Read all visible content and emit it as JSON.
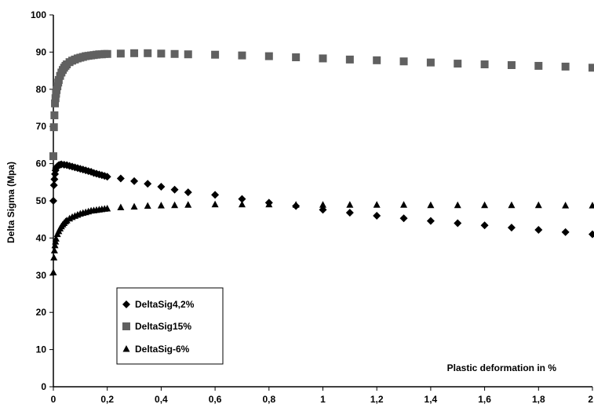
{
  "chart_data": {
    "type": "scatter",
    "title": "",
    "xlabel": "",
    "ylabel": "Delta Sigma (Mpa)",
    "annotation": "Plastic deformation in %",
    "xlim": [
      0,
      2
    ],
    "ylim": [
      0,
      100
    ],
    "x_ticks": [
      "0",
      "0,2",
      "0,4",
      "0,6",
      "0,8",
      "1",
      "1,2",
      "1,4",
      "1,6",
      "1,8",
      "2"
    ],
    "y_ticks": [
      "0",
      "10",
      "20",
      "30",
      "40",
      "50",
      "60",
      "70",
      "80",
      "90",
      "100"
    ],
    "grid": false,
    "legend_position": "bottom-left",
    "series": [
      {
        "name": "DeltaSig4,2%",
        "marker": "diamond",
        "color": "#000000",
        "x": [
          0.0,
          0.002,
          0.004,
          0.006,
          0.008,
          0.01,
          0.015,
          0.02,
          0.025,
          0.03,
          0.04,
          0.05,
          0.06,
          0.07,
          0.08,
          0.09,
          0.1,
          0.11,
          0.12,
          0.13,
          0.14,
          0.15,
          0.16,
          0.17,
          0.18,
          0.19,
          0.2,
          0.25,
          0.3,
          0.35,
          0.4,
          0.45,
          0.5,
          0.6,
          0.7,
          0.8,
          0.9,
          1.0,
          1.1,
          1.2,
          1.3,
          1.4,
          1.5,
          1.6,
          1.7,
          1.8,
          1.9,
          2.0
        ],
        "y": [
          50.0,
          54.2,
          55.8,
          57.2,
          58.2,
          58.8,
          59.3,
          59.6,
          59.7,
          59.8,
          59.7,
          59.6,
          59.4,
          59.2,
          59.0,
          58.8,
          58.6,
          58.4,
          58.2,
          58.0,
          57.8,
          57.5,
          57.3,
          57.1,
          56.9,
          56.7,
          56.5,
          56.0,
          55.3,
          54.6,
          53.8,
          53.0,
          52.3,
          51.6,
          50.5,
          49.5,
          48.6,
          47.6,
          46.8,
          46.0,
          45.3,
          44.6,
          44.0,
          43.4,
          42.8,
          42.2,
          41.6,
          41.0
        ]
      },
      {
        "name": "DeltaSig15%",
        "marker": "square",
        "color": "#606060",
        "x": [
          0.0,
          0.002,
          0.004,
          0.006,
          0.008,
          0.01,
          0.012,
          0.015,
          0.018,
          0.02,
          0.025,
          0.03,
          0.035,
          0.04,
          0.045,
          0.05,
          0.06,
          0.07,
          0.08,
          0.09,
          0.1,
          0.11,
          0.12,
          0.13,
          0.14,
          0.15,
          0.16,
          0.17,
          0.18,
          0.19,
          0.2,
          0.25,
          0.3,
          0.35,
          0.4,
          0.45,
          0.5,
          0.6,
          0.7,
          0.8,
          0.9,
          1.0,
          1.1,
          1.2,
          1.3,
          1.4,
          1.5,
          1.6,
          1.7,
          1.8,
          1.9,
          2.0
        ],
        "y": [
          62.0,
          69.8,
          73.0,
          76.2,
          77.6,
          78.8,
          79.8,
          80.8,
          81.8,
          82.5,
          83.6,
          84.5,
          85.2,
          85.8,
          86.3,
          86.7,
          87.3,
          87.7,
          88.0,
          88.3,
          88.5,
          88.7,
          88.9,
          89.0,
          89.1,
          89.2,
          89.3,
          89.4,
          89.4,
          89.5,
          89.5,
          89.6,
          89.7,
          89.7,
          89.6,
          89.5,
          89.4,
          89.3,
          89.1,
          88.9,
          88.6,
          88.3,
          88.0,
          87.8,
          87.5,
          87.2,
          86.9,
          86.7,
          86.5,
          86.3,
          86.1,
          85.8
        ]
      },
      {
        "name": "DeltaSig-6%",
        "marker": "triangle",
        "color": "#000000",
        "x": [
          0.0,
          0.002,
          0.004,
          0.006,
          0.008,
          0.01,
          0.015,
          0.02,
          0.025,
          0.03,
          0.035,
          0.04,
          0.045,
          0.05,
          0.06,
          0.07,
          0.08,
          0.09,
          0.1,
          0.11,
          0.12,
          0.13,
          0.14,
          0.15,
          0.16,
          0.17,
          0.18,
          0.19,
          0.2,
          0.25,
          0.3,
          0.35,
          0.4,
          0.45,
          0.5,
          0.6,
          0.7,
          0.8,
          0.9,
          1.0,
          1.1,
          1.2,
          1.3,
          1.4,
          1.5,
          1.6,
          1.7,
          1.8,
          1.9,
          2.0
        ],
        "y": [
          30.7,
          34.7,
          36.6,
          38.0,
          39.0,
          39.8,
          41.0,
          41.8,
          42.5,
          43.1,
          43.6,
          44.0,
          44.4,
          44.7,
          45.2,
          45.6,
          45.9,
          46.2,
          46.5,
          46.7,
          46.9,
          47.1,
          47.3,
          47.4,
          47.5,
          47.6,
          47.7,
          47.8,
          47.9,
          48.2,
          48.4,
          48.6,
          48.7,
          48.8,
          48.9,
          49.0,
          49.0,
          49.0,
          48.9,
          48.9,
          48.9,
          48.9,
          48.9,
          48.8,
          48.8,
          48.8,
          48.8,
          48.8,
          48.7,
          48.7
        ]
      }
    ]
  }
}
